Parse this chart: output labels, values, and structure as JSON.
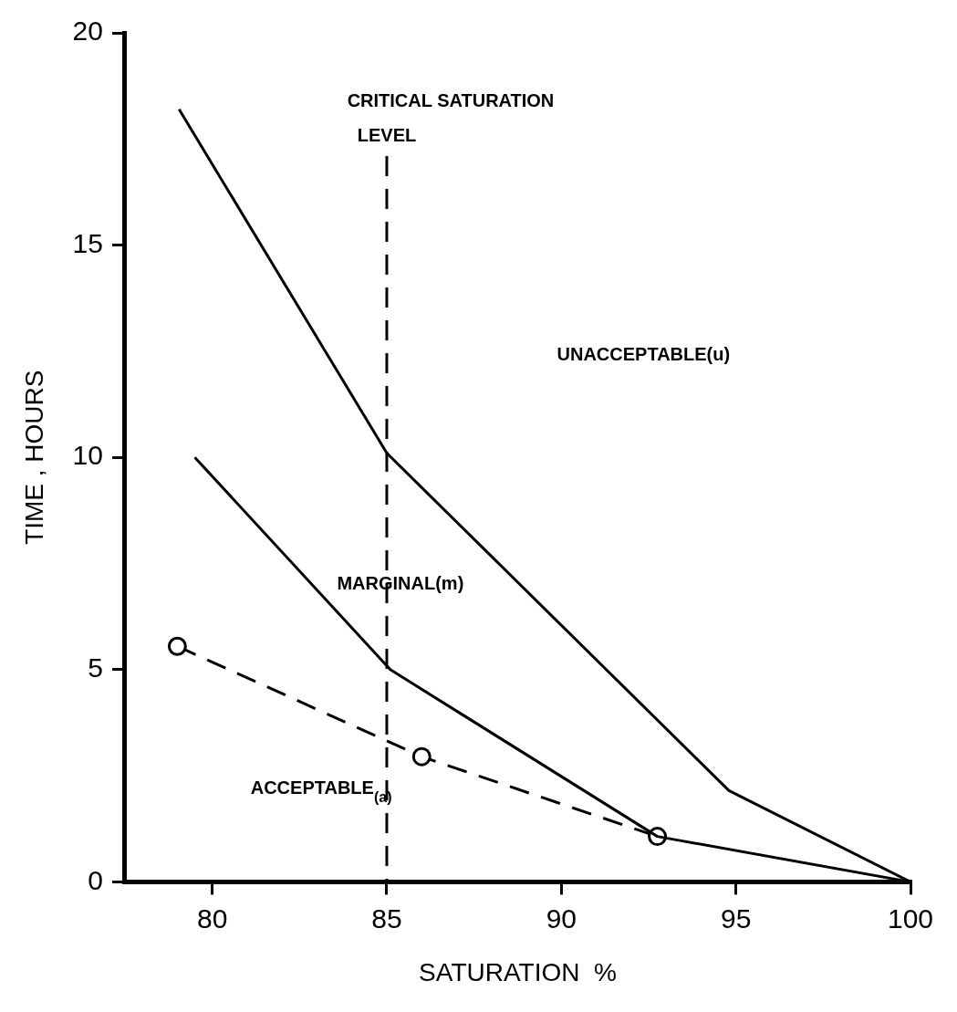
{
  "chart_data": {
    "type": "line",
    "xlabel": "SATURATION  %",
    "ylabel": "TIME , HOURS",
    "xlim": [
      77.5,
      100
    ],
    "ylim": [
      0,
      20
    ],
    "xticks": [
      80,
      85,
      90,
      95,
      100
    ],
    "yticks": [
      0,
      5,
      10,
      15,
      20
    ],
    "grid": false,
    "legend": false,
    "series": [
      {
        "color": "#000000",
        "marker": "none",
        "line_style": "solid",
        "x": [
          79.05,
          85,
          94.8,
          100
        ],
        "values": [
          18.2,
          10.1,
          2.15,
          0
        ]
      },
      {
        "color": "#000000",
        "marker": "none",
        "line_style": "solid",
        "x": [
          79.5,
          85.1,
          92.75,
          100
        ],
        "values": [
          10.0,
          5.0,
          1.07,
          0
        ]
      },
      {
        "color": "#000000",
        "marker": "circle",
        "line_style": "dashed",
        "x": [
          79.0,
          86.0,
          92.75
        ],
        "values": [
          5.55,
          2.95,
          1.07
        ]
      }
    ],
    "ref_lines": [
      {
        "axis": "x",
        "value": 85,
        "label": "CRITICAL SATURATION\nLEVEL",
        "color": "#000000",
        "line_style": "dashed"
      }
    ],
    "annotations": [
      "UNACCEPTABLE(u)",
      "MARGINAL(m)",
      "ACCEPTABLE$_{(a)}$"
    ]
  }
}
